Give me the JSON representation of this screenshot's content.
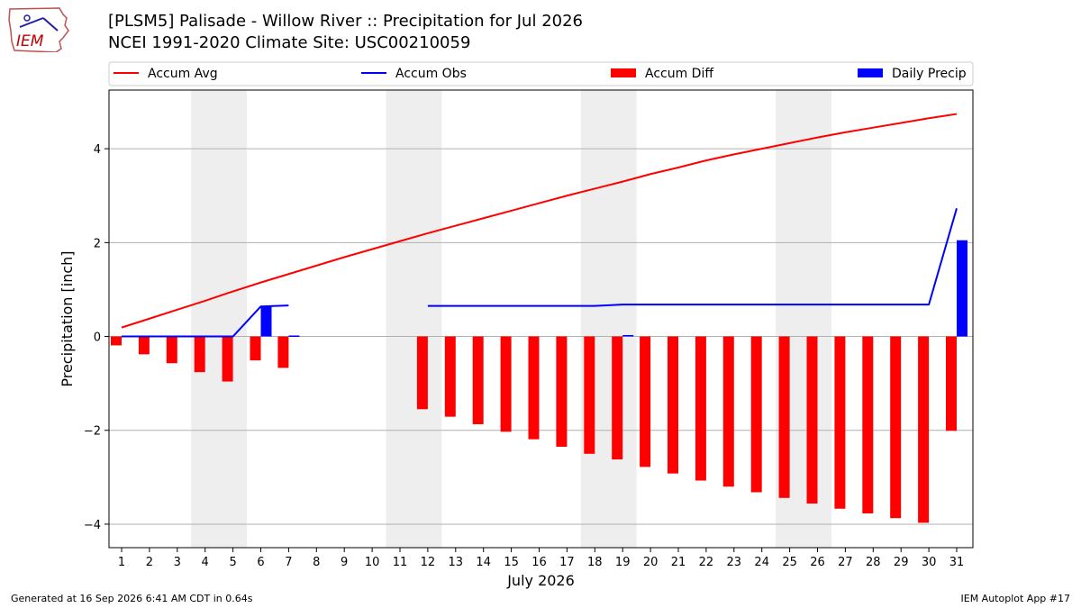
{
  "header": {
    "title_line1": "[PLSM5] Palisade - Willow River :: Precipitation for Jul 2026",
    "title_line2": "NCEI 1991-2020 Climate Site: USC00210059"
  },
  "logo": {
    "text": "IEM"
  },
  "footer": {
    "generated": "Generated at 16 Sep 2026 6:41 AM CDT in 0.64s",
    "app": "IEM Autoplot App #17"
  },
  "colors": {
    "accum_avg": "#ff0000",
    "accum_obs": "#0000ff",
    "accum_diff": "#ff0000",
    "daily_precip": "#0000ff",
    "weekend_shade": "#eeeeee",
    "grid": "#b0b0b0"
  },
  "chart_data": {
    "type": "bar",
    "xlabel": "July 2026",
    "ylabel": "Precipitation [inch]",
    "ylim": [
      -4.5,
      5.25
    ],
    "yticks": [
      -4,
      -2,
      0,
      2,
      4
    ],
    "grid": "horizontal",
    "legend_position": "top",
    "legend": [
      "Accum Avg",
      "Accum Obs",
      "Accum Diff",
      "Daily Precip"
    ],
    "x": [
      1,
      2,
      3,
      4,
      5,
      6,
      7,
      8,
      9,
      10,
      11,
      12,
      13,
      14,
      15,
      16,
      17,
      18,
      19,
      20,
      21,
      22,
      23,
      24,
      25,
      26,
      27,
      28,
      29,
      30,
      31
    ],
    "weekend_spans": [
      [
        4,
        5
      ],
      [
        11,
        12
      ],
      [
        18,
        19
      ],
      [
        25,
        26
      ]
    ],
    "series": [
      {
        "name": "Accum Avg",
        "kind": "line",
        "values": [
          0.19,
          0.38,
          0.57,
          0.76,
          0.96,
          1.15,
          1.33,
          1.51,
          1.69,
          1.86,
          2.03,
          2.2,
          2.36,
          2.52,
          2.68,
          2.84,
          3.0,
          3.15,
          3.3,
          3.46,
          3.6,
          3.75,
          3.88,
          4.0,
          4.12,
          4.24,
          4.35,
          4.45,
          4.55,
          4.65,
          4.74
        ]
      },
      {
        "name": "Accum Obs",
        "kind": "line",
        "values": [
          0.0,
          0.0,
          0.0,
          0.0,
          0.0,
          0.64,
          0.66,
          null,
          null,
          null,
          null,
          0.65,
          0.65,
          0.65,
          0.65,
          0.65,
          0.65,
          0.65,
          0.68,
          0.68,
          0.68,
          0.68,
          0.68,
          0.68,
          0.68,
          0.68,
          0.68,
          0.68,
          0.68,
          0.68,
          2.73
        ]
      },
      {
        "name": "Accum Diff",
        "kind": "bar",
        "values": [
          -0.19,
          -0.38,
          -0.57,
          -0.76,
          -0.96,
          -0.51,
          -0.67,
          null,
          null,
          null,
          null,
          -1.55,
          -1.71,
          -1.87,
          -2.03,
          -2.19,
          -2.35,
          -2.5,
          -2.62,
          -2.78,
          -2.92,
          -3.07,
          -3.2,
          -3.32,
          -3.44,
          -3.56,
          -3.67,
          -3.77,
          -3.87,
          -3.97,
          -2.01
        ]
      },
      {
        "name": "Daily Precip",
        "kind": "bar",
        "values": [
          0,
          0,
          0,
          0,
          0,
          0.64,
          0.02,
          null,
          null,
          null,
          null,
          0,
          0,
          0,
          0,
          0,
          0,
          0,
          0.03,
          0,
          0,
          0,
          0,
          0,
          0,
          0,
          0,
          0,
          0,
          0,
          2.05
        ]
      }
    ]
  }
}
